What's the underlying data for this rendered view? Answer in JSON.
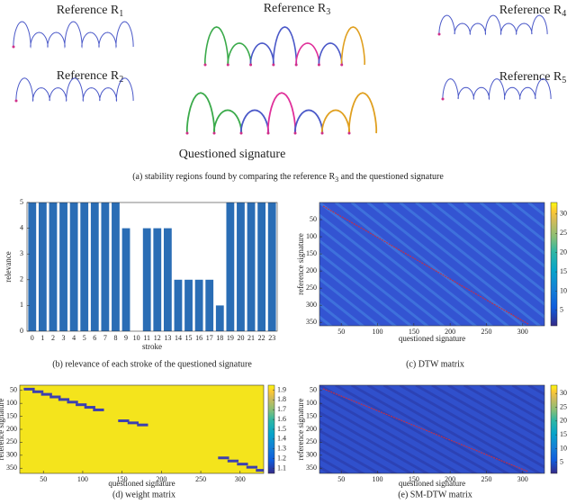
{
  "figure": {
    "references": [
      {
        "text": "Reference R",
        "sub": "1"
      },
      {
        "text": "Reference R",
        "sub": "2"
      },
      {
        "text": "Reference R",
        "sub": "3"
      },
      {
        "text": "Reference R",
        "sub": "4"
      },
      {
        "text": "Reference R",
        "sub": "5"
      }
    ],
    "questioned_label": "Questioned signature",
    "caption": {
      "text": "(a) stability regions found by comparing the reference R",
      "sub": "3",
      "after": " and the questioned signature"
    }
  },
  "chart_data": [
    {
      "type": "bar",
      "caption": "(b) relevance of each stroke of the questioned signature",
      "xlabel": "stroke",
      "ylabel": "relevance",
      "color": "#2a6db5",
      "categories": [
        0,
        1,
        2,
        3,
        4,
        5,
        6,
        7,
        8,
        9,
        10,
        11,
        12,
        13,
        14,
        15,
        16,
        17,
        18,
        19,
        20,
        21,
        22,
        23
      ],
      "values": [
        5,
        5,
        5,
        5,
        5,
        5,
        5,
        5,
        5,
        4,
        0,
        4,
        4,
        4,
        2,
        2,
        2,
        2,
        1,
        5,
        5,
        5,
        5,
        5
      ],
      "ylim": [
        0,
        5
      ],
      "yticks": [
        0,
        1,
        2,
        3,
        4,
        5
      ]
    },
    {
      "type": "heatmap",
      "caption": "(c) DTW matrix",
      "xlabel": "questioned signature",
      "ylabel": "reference signature",
      "xlim": [
        20,
        330
      ],
      "xticks": [
        50,
        100,
        150,
        200,
        250,
        300
      ],
      "ylim": [
        0,
        360
      ],
      "yticks": [
        50,
        100,
        150,
        200,
        250,
        300,
        350
      ],
      "colorbar": {
        "lim": [
          1,
          33
        ],
        "ticks": [
          5,
          10,
          15,
          20,
          25,
          30
        ]
      }
    },
    {
      "type": "heatmap",
      "caption": "(d) weight matrix",
      "xlabel": "questioned signature",
      "ylabel": "reference signature",
      "xlim": [
        20,
        330
      ],
      "xticks": [
        50,
        100,
        150,
        200,
        250,
        300
      ],
      "ylim": [
        30,
        370
      ],
      "yticks": [
        50,
        100,
        150,
        200,
        250,
        300,
        350
      ],
      "colorbar": {
        "lim": [
          1.05,
          1.95
        ],
        "ticks": [
          1.1,
          1.2,
          1.3,
          1.4,
          1.5,
          1.6,
          1.7,
          1.8,
          1.9
        ]
      }
    },
    {
      "type": "heatmap",
      "caption": "(e) SM-DTW matrix",
      "xlabel": "questioned signature",
      "ylabel": "reference signature",
      "xlim": [
        20,
        330
      ],
      "xticks": [
        50,
        100,
        150,
        200,
        250,
        300
      ],
      "ylim": [
        30,
        370
      ],
      "yticks": [
        50,
        100,
        150,
        200,
        250,
        300,
        350
      ],
      "colorbar": {
        "lim": [
          1,
          33
        ],
        "ticks": [
          5,
          10,
          15,
          20,
          25,
          30
        ]
      }
    }
  ]
}
